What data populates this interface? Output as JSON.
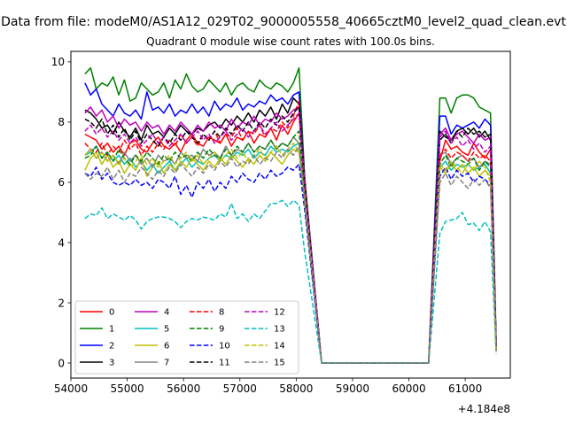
{
  "suptitle": "Data from file: modeM0/AS1A12_029T02_9000005558_40665cztM0_level2_quad_clean.evt",
  "chart_data": {
    "type": "line",
    "title": "Quadrant 0 module wise count rates with 100.0s bins.",
    "xlabel": "",
    "ylabel": "",
    "x_offset_label": "+4.184e8",
    "xlim": [
      54000,
      61800
    ],
    "ylim": [
      -0.5,
      10.35
    ],
    "xticks": [
      54000,
      55000,
      56000,
      57000,
      58000,
      59000,
      60000,
      61000
    ],
    "xtick_labels": [
      "54000",
      "55000",
      "56000",
      "57000",
      "58000",
      "59000",
      "60000",
      "61000"
    ],
    "yticks": [
      0,
      2,
      4,
      6,
      8,
      10
    ],
    "ytick_labels": [
      "0",
      "2",
      "4",
      "6",
      "8",
      "10"
    ],
    "grid": false,
    "legend_position": "lower-left",
    "legend_columns": 4,
    "segment1": {
      "x_start": 54250,
      "step": 100,
      "count": 40
    },
    "segment2": {
      "x_start": 60550,
      "step": 100,
      "count": 11
    },
    "zero_x": [
      58450,
      59450,
      60350
    ],
    "series": [
      {
        "name": "0",
        "color": "#ff0000",
        "dash": "solid",
        "seg1": [
          7.6,
          7.5,
          7.4,
          7.1,
          7.3,
          7.0,
          7.2,
          6.9,
          7.3,
          7.4,
          7.1,
          7.0,
          7.3,
          7.5,
          7.2,
          7.1,
          7.3,
          7.0,
          7.4,
          7.6,
          7.3,
          7.2,
          7.5,
          7.4,
          7.3,
          7.6,
          7.2,
          7.5,
          7.4,
          7.7,
          7.3,
          7.6,
          7.5,
          7.8,
          7.4,
          7.9,
          7.6,
          8.0,
          8.3,
          5.9
        ],
        "seg2": [
          6.7,
          7.4,
          7.1,
          7.2,
          7.0,
          6.9,
          7.3,
          7.0,
          6.8,
          7.1,
          0.6
        ]
      },
      {
        "name": "1",
        "color": "#008000",
        "dash": "solid",
        "seg1": [
          9.6,
          9.8,
          9.1,
          9.3,
          9.2,
          9.5,
          8.9,
          9.4,
          8.7,
          8.8,
          9.3,
          9.1,
          8.9,
          9.0,
          9.3,
          8.8,
          9.4,
          9.1,
          9.6,
          9.2,
          9.0,
          9.1,
          9.4,
          9.2,
          9.0,
          9.3,
          8.9,
          9.2,
          9.3,
          9.1,
          9.0,
          9.4,
          9.2,
          9.1,
          9.3,
          9.2,
          9.0,
          9.3,
          9.8,
          6.2
        ],
        "seg2": [
          8.8,
          8.8,
          8.3,
          8.8,
          8.9,
          8.9,
          8.8,
          8.5,
          8.4,
          8.3,
          0.7
        ]
      },
      {
        "name": "2",
        "color": "#0000ff",
        "dash": "solid",
        "seg1": [
          9.3,
          8.9,
          9.1,
          8.6,
          8.4,
          8.2,
          8.6,
          8.3,
          8.2,
          8.4,
          8.1,
          9.0,
          8.4,
          8.5,
          8.3,
          8.6,
          8.2,
          8.4,
          8.3,
          8.6,
          8.3,
          8.5,
          8.2,
          8.7,
          8.4,
          8.6,
          8.5,
          8.8,
          8.4,
          8.6,
          8.5,
          8.7,
          8.6,
          8.9,
          8.7,
          8.8,
          8.6,
          8.9,
          9.0,
          6.0
        ],
        "seg2": [
          8.2,
          8.2,
          7.6,
          7.9,
          7.8,
          7.9,
          8.0,
          7.8,
          8.1,
          7.9,
          0.6
        ]
      },
      {
        "name": "3",
        "color": "#000000",
        "dash": "solid",
        "seg1": [
          8.4,
          8.3,
          8.1,
          7.8,
          7.9,
          7.6,
          8.0,
          7.7,
          7.5,
          7.8,
          7.4,
          7.9,
          7.6,
          7.7,
          7.5,
          7.8,
          7.6,
          7.9,
          7.7,
          7.6,
          7.8,
          7.7,
          7.9,
          8.0,
          7.8,
          8.1,
          7.9,
          8.2,
          8.0,
          8.3,
          8.0,
          8.4,
          8.2,
          8.5,
          8.1,
          8.6,
          8.3,
          8.8,
          8.6,
          6.0
        ],
        "seg2": [
          7.7,
          7.5,
          7.4,
          7.7,
          7.8,
          7.6,
          7.8,
          7.5,
          7.7,
          7.4,
          0.5
        ]
      },
      {
        "name": "4",
        "color": "#bf00bf",
        "dash": "solid",
        "seg1": [
          8.3,
          8.5,
          8.2,
          8.4,
          8.0,
          8.2,
          7.8,
          8.1,
          7.9,
          8.0,
          7.7,
          8.0,
          7.8,
          7.9,
          7.6,
          7.9,
          7.7,
          8.0,
          7.8,
          7.6,
          7.9,
          7.7,
          8.0,
          7.8,
          7.9,
          7.7,
          8.1,
          7.8,
          8.0,
          7.9,
          8.2,
          7.9,
          8.1,
          8.0,
          8.3,
          8.1,
          8.2,
          8.4,
          8.5,
          5.9
        ],
        "seg2": [
          7.6,
          7.8,
          7.4,
          7.6,
          7.7,
          7.5,
          7.3,
          7.6,
          7.4,
          7.5,
          0.5
        ]
      },
      {
        "name": "5",
        "color": "#00bfbf",
        "dash": "solid",
        "seg1": [
          6.9,
          7.0,
          7.2,
          6.8,
          7.0,
          6.7,
          6.9,
          6.6,
          6.8,
          6.5,
          6.7,
          6.4,
          6.6,
          6.3,
          6.5,
          6.7,
          6.4,
          6.6,
          6.8,
          6.5,
          6.7,
          6.6,
          6.8,
          6.9,
          6.7,
          6.9,
          6.8,
          7.0,
          6.9,
          7.1,
          6.8,
          7.0,
          6.9,
          7.2,
          7.0,
          7.1,
          7.0,
          7.2,
          7.3,
          5.4
        ],
        "seg2": [
          6.5,
          6.7,
          6.4,
          6.6,
          6.5,
          6.6,
          6.4,
          6.5,
          6.6,
          6.3,
          0.4
        ]
      },
      {
        "name": "6",
        "color": "#bfbf00",
        "dash": "solid",
        "seg1": [
          6.4,
          6.8,
          7.0,
          6.6,
          6.9,
          6.5,
          6.7,
          6.3,
          6.6,
          6.4,
          6.8,
          6.2,
          6.5,
          6.7,
          6.3,
          6.6,
          6.4,
          6.7,
          6.5,
          6.8,
          6.6,
          6.4,
          6.7,
          6.5,
          6.8,
          6.6,
          6.9,
          6.7,
          6.5,
          6.8,
          6.6,
          6.9,
          6.7,
          7.0,
          6.8,
          6.6,
          6.9,
          7.1,
          7.0,
          5.5
        ],
        "seg2": [
          6.5,
          6.3,
          6.6,
          6.4,
          6.6,
          6.3,
          6.5,
          6.2,
          6.4,
          6.2,
          0.4
        ]
      },
      {
        "name": "7",
        "color": "#808080",
        "dash": "solid",
        "seg1": [
          6.9,
          7.1,
          6.8,
          7.0,
          6.7,
          6.9,
          6.6,
          7.0,
          6.7,
          6.9,
          6.6,
          6.8,
          6.5,
          6.9,
          6.7,
          6.8,
          6.6,
          7.0,
          6.8,
          6.9,
          6.7,
          7.1,
          6.9,
          7.0,
          6.8,
          7.2,
          6.9,
          7.1,
          7.0,
          7.3,
          7.0,
          7.2,
          7.1,
          7.4,
          7.1,
          7.3,
          7.2,
          7.5,
          7.3,
          5.6
        ],
        "seg2": [
          6.9,
          7.0,
          6.6,
          6.8,
          6.9,
          6.7,
          6.8,
          6.5,
          6.7,
          6.6,
          0.4
        ]
      },
      {
        "name": "8",
        "color": "#ff0000",
        "dash": "dashed",
        "seg1": [
          7.3,
          7.1,
          7.0,
          7.3,
          6.9,
          7.2,
          7.0,
          7.4,
          7.1,
          7.3,
          6.9,
          7.2,
          7.0,
          7.3,
          7.1,
          7.4,
          7.2,
          7.6,
          7.3,
          7.5,
          7.2,
          7.6,
          7.4,
          7.7,
          7.3,
          7.6,
          7.5,
          7.8,
          7.4,
          7.7,
          7.6,
          7.9,
          7.5,
          7.8,
          7.7,
          8.0,
          7.8,
          8.2,
          8.7,
          5.8
        ],
        "seg2": [
          6.9,
          7.1,
          6.8,
          7.0,
          6.9,
          6.7,
          7.0,
          6.8,
          6.9,
          6.7,
          0.5
        ]
      },
      {
        "name": "9",
        "color": "#008000",
        "dash": "dashed",
        "seg1": [
          6.8,
          6.9,
          7.2,
          6.8,
          7.0,
          6.7,
          7.1,
          6.8,
          6.6,
          6.9,
          6.7,
          7.0,
          6.8,
          6.6,
          6.9,
          6.7,
          7.0,
          6.8,
          6.9,
          6.7,
          7.0,
          6.8,
          7.1,
          6.9,
          6.8,
          7.1,
          6.9,
          7.2,
          7.0,
          7.3,
          7.0,
          7.2,
          7.1,
          7.4,
          7.1,
          7.3,
          7.2,
          7.5,
          7.7,
          5.7
        ],
        "seg2": [
          6.6,
          6.9,
          6.5,
          6.8,
          6.7,
          6.6,
          6.8,
          6.4,
          6.7,
          6.5,
          0.5
        ]
      },
      {
        "name": "10",
        "color": "#0000ff",
        "dash": "dashed",
        "seg1": [
          6.3,
          6.2,
          6.5,
          6.1,
          6.3,
          6.0,
          5.9,
          6.0,
          5.9,
          6.1,
          5.9,
          6.0,
          5.8,
          6.1,
          6.0,
          5.8,
          6.2,
          5.6,
          5.9,
          5.5,
          6.0,
          5.8,
          6.1,
          5.7,
          6.0,
          5.8,
          6.2,
          6.0,
          6.3,
          6.1,
          6.0,
          6.3,
          6.1,
          6.4,
          6.2,
          6.3,
          6.5,
          6.4,
          6.6,
          5.1
        ],
        "seg2": [
          6.2,
          6.5,
          6.1,
          6.4,
          6.2,
          6.3,
          6.0,
          6.2,
          6.1,
          5.9,
          0.4
        ]
      },
      {
        "name": "11",
        "color": "#000000",
        "dash": "dashed",
        "seg1": [
          8.1,
          8.0,
          7.8,
          8.1,
          7.6,
          7.9,
          7.5,
          7.8,
          7.4,
          7.7,
          7.3,
          7.6,
          7.4,
          7.2,
          7.5,
          7.3,
          7.6,
          7.4,
          7.7,
          7.5,
          7.3,
          7.6,
          7.4,
          7.7,
          7.5,
          7.8,
          7.6,
          7.9,
          7.7,
          8.0,
          7.7,
          8.0,
          7.8,
          8.1,
          7.9,
          8.2,
          8.0,
          8.3,
          8.5,
          6.0
        ],
        "seg2": [
          7.4,
          7.6,
          7.3,
          7.7,
          7.5,
          7.8,
          7.6,
          7.7,
          7.5,
          7.6,
          0.5
        ]
      },
      {
        "name": "12",
        "color": "#bf00bf",
        "dash": "dashed",
        "seg1": [
          7.7,
          7.9,
          7.6,
          7.8,
          7.5,
          7.7,
          7.4,
          7.6,
          7.3,
          7.5,
          7.2,
          7.4,
          7.6,
          7.3,
          7.5,
          7.2,
          7.4,
          7.6,
          7.3,
          7.5,
          7.7,
          7.4,
          7.6,
          7.3,
          7.5,
          7.7,
          7.4,
          7.6,
          7.8,
          7.5,
          7.7,
          7.9,
          7.6,
          7.8,
          8.0,
          7.7,
          7.9,
          8.1,
          8.3,
          6.1
        ],
        "seg2": [
          7.5,
          7.7,
          7.3,
          7.5,
          7.2,
          7.4,
          7.1,
          7.3,
          7.0,
          7.2,
          0.5
        ]
      },
      {
        "name": "13",
        "color": "#00bfbf",
        "dash": "dashed",
        "seg1": [
          4.8,
          4.95,
          4.9,
          5.15,
          4.8,
          4.95,
          4.85,
          4.75,
          4.9,
          4.75,
          4.45,
          4.7,
          4.8,
          4.85,
          4.85,
          4.8,
          4.7,
          4.5,
          4.7,
          4.8,
          4.75,
          4.85,
          4.8,
          4.75,
          4.95,
          4.85,
          5.3,
          4.8,
          4.95,
          4.7,
          4.95,
          4.8,
          5.05,
          5.3,
          5.3,
          5.4,
          5.2,
          5.4,
          5.25,
          3.7
        ],
        "seg2": [
          4.3,
          4.7,
          4.75,
          4.8,
          5.0,
          4.6,
          4.65,
          4.4,
          4.7,
          4.35,
          0.3
        ]
      },
      {
        "name": "14",
        "color": "#bfbf00",
        "dash": "dashed",
        "seg1": [
          6.9,
          7.1,
          6.8,
          7.0,
          6.7,
          6.9,
          6.6,
          6.8,
          6.5,
          6.7,
          6.9,
          6.6,
          6.8,
          6.5,
          6.7,
          6.9,
          6.6,
          6.8,
          7.0,
          6.7,
          6.9,
          6.6,
          6.8,
          7.0,
          6.7,
          6.9,
          7.1,
          6.8,
          7.0,
          6.7,
          6.9,
          7.1,
          6.8,
          7.0,
          7.2,
          6.9,
          7.1,
          7.3,
          7.0,
          5.5
        ],
        "seg2": [
          6.6,
          6.4,
          6.7,
          6.5,
          6.3,
          6.6,
          6.4,
          6.7,
          6.5,
          6.0,
          0.4
        ]
      },
      {
        "name": "15",
        "color": "#808080",
        "dash": "dashed",
        "seg1": [
          6.3,
          6.1,
          6.3,
          6.2,
          6.5,
          6.1,
          6.4,
          6.0,
          6.3,
          6.2,
          6.5,
          6.3,
          6.1,
          6.4,
          6.2,
          6.5,
          6.3,
          6.6,
          6.4,
          6.2,
          6.5,
          6.3,
          6.6,
          6.4,
          6.7,
          6.5,
          6.8,
          6.5,
          6.7,
          6.6,
          6.9,
          6.6,
          6.8,
          6.7,
          7.0,
          6.8,
          7.1,
          6.9,
          7.2,
          5.3
        ],
        "seg2": [
          6.0,
          6.3,
          5.9,
          6.2,
          6.0,
          5.8,
          6.1,
          5.9,
          6.1,
          5.8,
          0.4
        ]
      }
    ]
  }
}
